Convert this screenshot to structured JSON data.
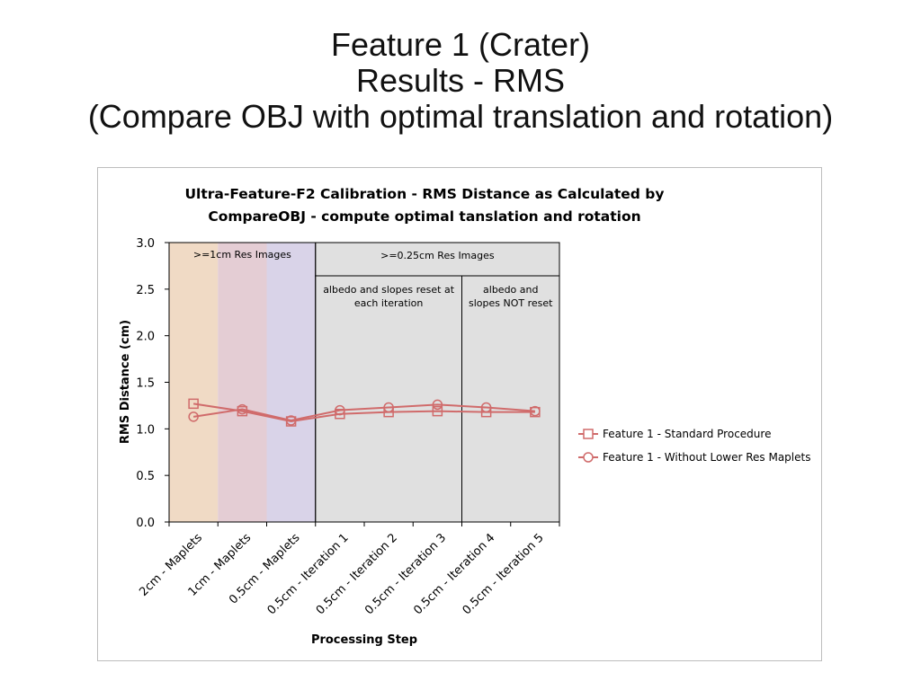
{
  "slide": {
    "title_lines": [
      "Feature 1 (Crater)",
      "Results - RMS",
      "(Compare OBJ with optimal translation and rotation)"
    ]
  },
  "chart_data": {
    "type": "line",
    "title_lines": [
      "Ultra-Feature-F2 Calibration - RMS Distance as Calculated by",
      "CompareOBJ - compute optimal tanslation and rotation"
    ],
    "xlabel": "Processing Step",
    "ylabel": "RMS Distance (cm)",
    "ylim": [
      0,
      3.0
    ],
    "yticks": [
      "0.0",
      "0.5",
      "1.0",
      "1.5",
      "2.0",
      "2.5",
      "3.0"
    ],
    "categories": [
      "2cm - Maplets",
      "1cm - Maplets",
      "0.5cm - Maplets",
      "0.5cm - Iteration 1",
      "0.5cm - Iteration 2",
      "0.5cm - Iteration 3",
      "0.5cm - Iteration 4",
      "0.5cm - Iteration 5"
    ],
    "series": [
      {
        "name": "Feature 1 - Standard Procedure",
        "marker": "square",
        "color": "#d06b6b",
        "values": [
          1.27,
          1.19,
          1.08,
          1.16,
          1.18,
          1.19,
          1.18,
          1.18
        ]
      },
      {
        "name": "Feature 1 - Without Lower Res Maplets",
        "marker": "circle",
        "color": "#d06b6b",
        "values": [
          1.13,
          1.21,
          1.09,
          1.2,
          1.23,
          1.26,
          1.23,
          1.19
        ]
      }
    ],
    "regions": {
      "low_res_label": ">=1cm Res Images",
      "high_res_label": ">=0.25cm Res Images",
      "reset_label_lines": [
        "albedo and slopes reset at",
        "each iteration"
      ],
      "not_reset_label_lines": [
        "albedo and",
        "slopes NOT reset"
      ],
      "band_colors": [
        "#f0dac5",
        "#e4cdd4",
        "#d9d3e8",
        "#e0e0e0"
      ]
    },
    "grid": false,
    "legend_position": "right"
  }
}
